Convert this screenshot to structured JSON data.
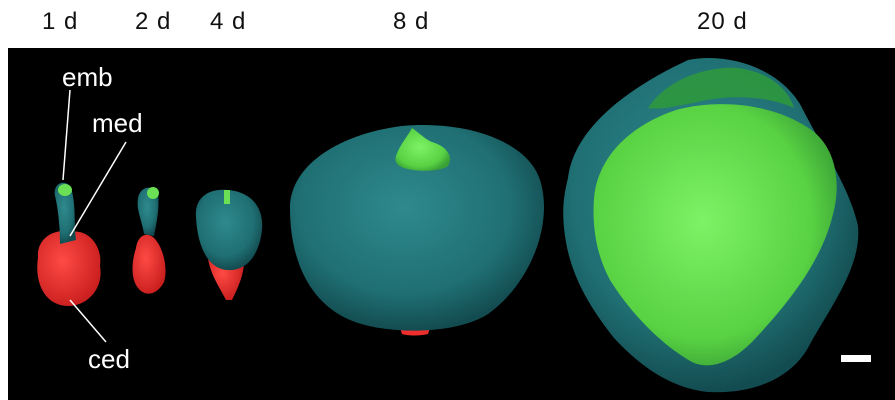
{
  "stages": [
    {
      "key": "d1",
      "label": "1 d"
    },
    {
      "key": "d2",
      "label": "2 d"
    },
    {
      "key": "d4",
      "label": "4 d"
    },
    {
      "key": "d8",
      "label": "8 d"
    },
    {
      "key": "d20",
      "label": "20 d"
    }
  ],
  "annotations": {
    "emb": "emb",
    "med": "med",
    "ced": "ced"
  },
  "colors": {
    "background": "#000000",
    "embryo_green": "#5fd64a",
    "micropylar_endosperm_teal": "#1f6f73",
    "chalazal_endosperm_red": "#ee2d2d"
  }
}
